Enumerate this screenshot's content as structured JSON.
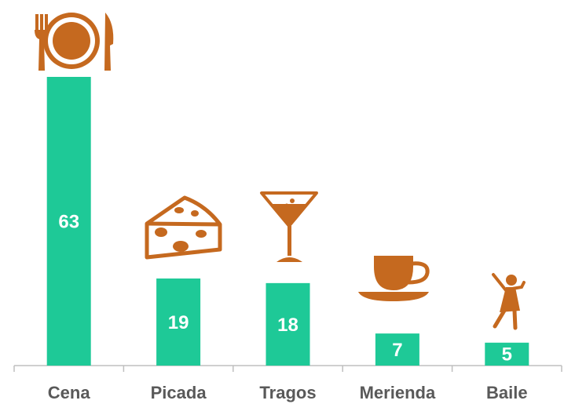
{
  "chart_data": {
    "type": "bar",
    "categories": [
      "Cena",
      "Picada",
      "Tragos",
      "Merienda",
      "Baile"
    ],
    "values": [
      63,
      19,
      18,
      7,
      5
    ],
    "color": "#1ec997"
  }
}
